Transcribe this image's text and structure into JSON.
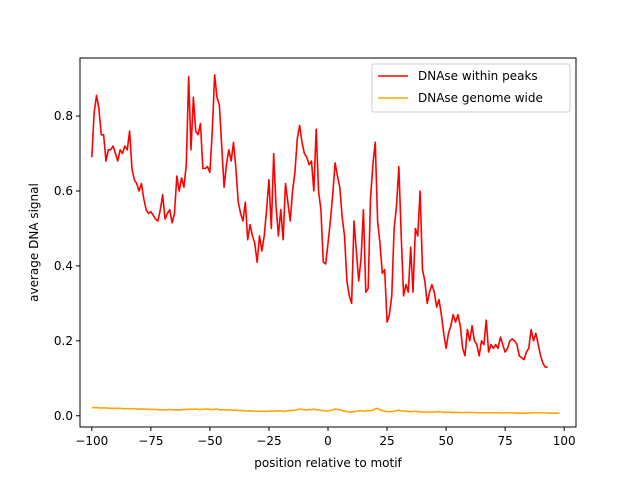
{
  "chart_data": {
    "type": "line",
    "xlabel": "position relative to motif",
    "ylabel": "average DNA signal",
    "xlim": [
      -105,
      105
    ],
    "ylim": [
      -0.03,
      0.955
    ],
    "xticks": [
      -100,
      -75,
      -50,
      -25,
      0,
      25,
      50,
      75,
      100
    ],
    "yticks": [
      0.0,
      0.2,
      0.4,
      0.6,
      0.8
    ],
    "ytick_labels": [
      "0.0",
      "0.2",
      "0.4",
      "0.6",
      "0.8"
    ],
    "grid": false,
    "legend_position": "top-right",
    "series": [
      {
        "name": "DNAse within peaks",
        "color": "#ff0000",
        "x_start": -100,
        "x_step": 1,
        "values": [
          0.69,
          0.81,
          0.855,
          0.82,
          0.75,
          0.75,
          0.68,
          0.71,
          0.71,
          0.72,
          0.7,
          0.68,
          0.71,
          0.7,
          0.72,
          0.71,
          0.76,
          0.66,
          0.63,
          0.62,
          0.6,
          0.62,
          0.58,
          0.55,
          0.54,
          0.545,
          0.535,
          0.525,
          0.52,
          0.55,
          0.59,
          0.525,
          0.54,
          0.55,
          0.515,
          0.54,
          0.64,
          0.6,
          0.635,
          0.61,
          0.67,
          0.905,
          0.71,
          0.85,
          0.76,
          0.75,
          0.78,
          0.66,
          0.66,
          0.665,
          0.65,
          0.76,
          0.91,
          0.85,
          0.83,
          0.72,
          0.61,
          0.67,
          0.71,
          0.68,
          0.73,
          0.66,
          0.57,
          0.54,
          0.52,
          0.57,
          0.47,
          0.51,
          0.48,
          0.46,
          0.41,
          0.48,
          0.44,
          0.48,
          0.55,
          0.63,
          0.5,
          0.7,
          0.56,
          0.48,
          0.55,
          0.47,
          0.62,
          0.57,
          0.52,
          0.6,
          0.65,
          0.74,
          0.775,
          0.73,
          0.7,
          0.69,
          0.67,
          0.68,
          0.6,
          0.765,
          0.6,
          0.55,
          0.41,
          0.405,
          0.46,
          0.52,
          0.59,
          0.675,
          0.64,
          0.61,
          0.53,
          0.48,
          0.36,
          0.32,
          0.3,
          0.52,
          0.44,
          0.36,
          0.42,
          0.55,
          0.33,
          0.34,
          0.58,
          0.67,
          0.73,
          0.52,
          0.46,
          0.38,
          0.39,
          0.25,
          0.27,
          0.32,
          0.5,
          0.56,
          0.665,
          0.48,
          0.32,
          0.35,
          0.33,
          0.45,
          0.33,
          0.5,
          0.48,
          0.6,
          0.39,
          0.36,
          0.3,
          0.33,
          0.35,
          0.33,
          0.29,
          0.31,
          0.27,
          0.22,
          0.18,
          0.22,
          0.24,
          0.27,
          0.25,
          0.27,
          0.24,
          0.18,
          0.16,
          0.23,
          0.2,
          0.24,
          0.2,
          0.19,
          0.16,
          0.2,
          0.19,
          0.255,
          0.17,
          0.19,
          0.18,
          0.19,
          0.18,
          0.21,
          0.19,
          0.17,
          0.18,
          0.2,
          0.205,
          0.2,
          0.19,
          0.16,
          0.155,
          0.15,
          0.17,
          0.18,
          0.23,
          0.2,
          0.22,
          0.19,
          0.16,
          0.14,
          0.13,
          0.13
        ]
      },
      {
        "name": "DNAse genome wide",
        "color": "#ffa500",
        "x_start": -100,
        "x_step": 1,
        "values": [
          0.021,
          0.022,
          0.022,
          0.021,
          0.021,
          0.021,
          0.021,
          0.02,
          0.02,
          0.02,
          0.02,
          0.02,
          0.02,
          0.019,
          0.019,
          0.019,
          0.019,
          0.019,
          0.019,
          0.018,
          0.018,
          0.018,
          0.018,
          0.018,
          0.017,
          0.017,
          0.017,
          0.017,
          0.016,
          0.016,
          0.016,
          0.016,
          0.016,
          0.017,
          0.016,
          0.016,
          0.016,
          0.016,
          0.016,
          0.017,
          0.017,
          0.017,
          0.018,
          0.017,
          0.018,
          0.017,
          0.017,
          0.017,
          0.018,
          0.018,
          0.017,
          0.017,
          0.017,
          0.018,
          0.016,
          0.016,
          0.016,
          0.016,
          0.016,
          0.015,
          0.015,
          0.015,
          0.014,
          0.014,
          0.014,
          0.013,
          0.013,
          0.013,
          0.013,
          0.012,
          0.012,
          0.012,
          0.012,
          0.012,
          0.012,
          0.012,
          0.013,
          0.012,
          0.013,
          0.013,
          0.013,
          0.012,
          0.012,
          0.013,
          0.014,
          0.014,
          0.015,
          0.016,
          0.018,
          0.017,
          0.016,
          0.015,
          0.017,
          0.016,
          0.018,
          0.016,
          0.016,
          0.014,
          0.014,
          0.013,
          0.013,
          0.014,
          0.015,
          0.018,
          0.017,
          0.016,
          0.014,
          0.012,
          0.012,
          0.01,
          0.01,
          0.011,
          0.012,
          0.013,
          0.014,
          0.012,
          0.013,
          0.014,
          0.013,
          0.015,
          0.018,
          0.02,
          0.016,
          0.014,
          0.012,
          0.011,
          0.011,
          0.011,
          0.012,
          0.014,
          0.015,
          0.013,
          0.013,
          0.012,
          0.011,
          0.011,
          0.011,
          0.012,
          0.011,
          0.011,
          0.01,
          0.01,
          0.01,
          0.01,
          0.01,
          0.01,
          0.011,
          0.011,
          0.01,
          0.009,
          0.009,
          0.01,
          0.009,
          0.009,
          0.009,
          0.009,
          0.008,
          0.008,
          0.009,
          0.009,
          0.009,
          0.009,
          0.008,
          0.008,
          0.008,
          0.008,
          0.008,
          0.008,
          0.008,
          0.008,
          0.008,
          0.008,
          0.008,
          0.008,
          0.007,
          0.008,
          0.008,
          0.008,
          0.008,
          0.007,
          0.007,
          0.007,
          0.007,
          0.007,
          0.007,
          0.007,
          0.008,
          0.008,
          0.008,
          0.008,
          0.008,
          0.008,
          0.008,
          0.007,
          0.007,
          0.007,
          0.007,
          0.007,
          0.007
        ]
      }
    ]
  }
}
